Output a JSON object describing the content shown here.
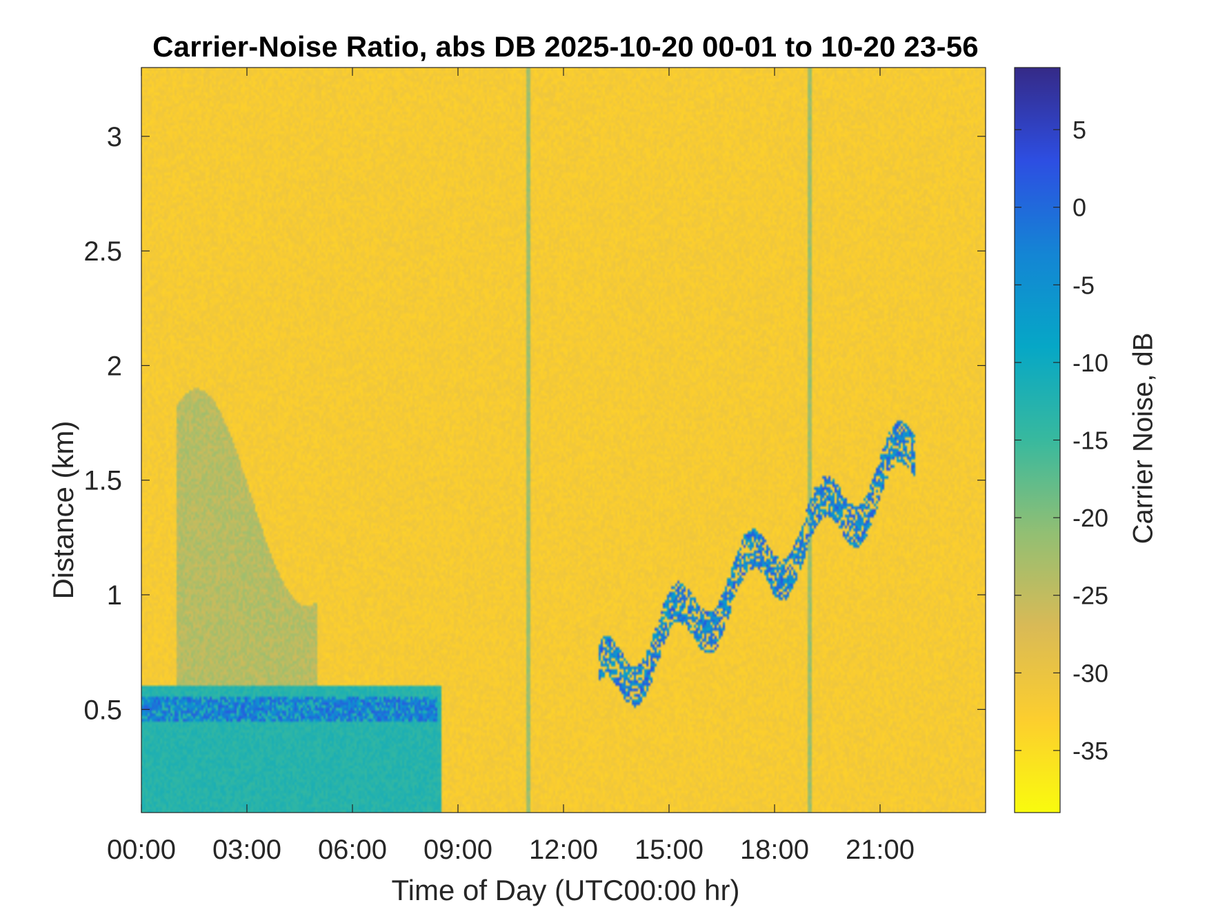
{
  "chart_data": {
    "type": "heatmap",
    "title": "Carrier-Noise Ratio, abs DB 2025-10-20 00-01 to 10-20 23-56",
    "xlabel": "Time of Day (UTC00:00 hr)",
    "ylabel": "Distance (km)",
    "colorbar_label": "Carrier Noise, dB",
    "xlim_hours": [
      0,
      24
    ],
    "ylim_km": [
      0.05,
      3.3
    ],
    "x_ticks": [
      {
        "value": 0,
        "label": "00:00"
      },
      {
        "value": 3,
        "label": "03:00"
      },
      {
        "value": 6,
        "label": "06:00"
      },
      {
        "value": 9,
        "label": "09:00"
      },
      {
        "value": 12,
        "label": "12:00"
      },
      {
        "value": 15,
        "label": "15:00"
      },
      {
        "value": 18,
        "label": "18:00"
      },
      {
        "value": 21,
        "label": "21:00"
      }
    ],
    "y_ticks": [
      {
        "value": 0.5,
        "label": "0.5"
      },
      {
        "value": 1.0,
        "label": "1"
      },
      {
        "value": 1.5,
        "label": "1.5"
      },
      {
        "value": 2.0,
        "label": "2"
      },
      {
        "value": 2.5,
        "label": "2.5"
      },
      {
        "value": 3.0,
        "label": "3"
      }
    ],
    "colorbar": {
      "range_db": [
        -39,
        9
      ],
      "ticks": [
        {
          "value": 5,
          "label": "5"
        },
        {
          "value": 0,
          "label": "0"
        },
        {
          "value": -5,
          "label": "-5"
        },
        {
          "value": -10,
          "label": "-10"
        },
        {
          "value": -15,
          "label": "-15"
        },
        {
          "value": -20,
          "label": "-20"
        },
        {
          "value": -25,
          "label": "-25"
        },
        {
          "value": -30,
          "label": "-30"
        },
        {
          "value": -35,
          "label": "-35"
        }
      ],
      "colormap": "parula-reversed",
      "colors_high_to_low": [
        "#352a87",
        "#2d4ee2",
        "#1485d4",
        "#06a7c6",
        "#38b99e",
        "#92bf73",
        "#d9ba56",
        "#fcce2e",
        "#f9fb0e"
      ]
    },
    "background_db": -32,
    "features": [
      {
        "name": "near-range cloud layer (early morning)",
        "t_start": 0,
        "t_end": 8.5,
        "top_km": 0.6,
        "db": -13
      },
      {
        "name": "cloud base echo",
        "t_start": 0,
        "t_end": 8.4,
        "km": 0.5,
        "db": 2
      },
      {
        "name": "diffuse aerosol plume",
        "t_start": 1.0,
        "t_end": 5.0,
        "top_km": 1.9,
        "db": -24
      },
      {
        "name": "rising cloud layer (afternoon)",
        "t_start": 13.0,
        "t_end": 22.0,
        "km_start": 0.6,
        "km_end": 1.6,
        "db": 3
      },
      {
        "name": "vertical streak",
        "t": 11.0,
        "db": -22
      },
      {
        "name": "vertical streak",
        "t": 19.0,
        "db": -22
      }
    ]
  }
}
